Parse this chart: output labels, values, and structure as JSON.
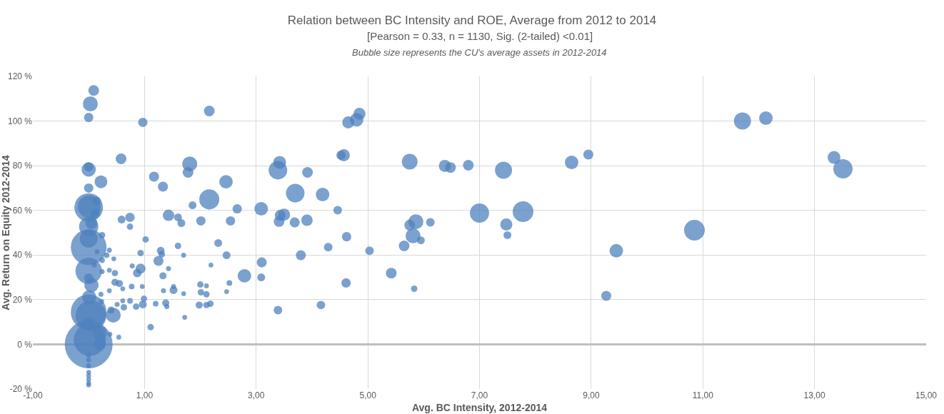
{
  "chart_data": {
    "type": "bubble",
    "title": "Relation between BC Intensity and ROE, Average from 2012 to 2014",
    "subtitle": "[Pearson = 0.33, n = 1130, Sig. (2-tailed) <0.01]",
    "annotations": [
      "Bubble size represents the CU's average assets in 2012-2014"
    ],
    "xlabel": "Avg. BC Intensity, 2012-2014",
    "ylabel": "Avg. Return on Equity 2012-2014",
    "x": [
      11.71,
      12.13,
      13.35,
      13.51,
      10.85,
      9.45,
      9.27,
      8.65,
      8.95,
      4.65,
      4.8,
      4.85,
      4.52,
      4.57,
      5.75,
      6.38,
      6.48,
      6.8,
      7.43,
      7,
      7.78,
      7.48,
      7.5,
      5.75,
      5.86,
      5.81,
      5.95,
      6.12,
      5.65,
      5.42,
      5.83,
      5.03,
      4.62,
      4.61,
      4.29,
      4.16,
      4.46,
      4.19,
      3.7,
      3.92,
      3.42,
      3.39,
      3.91,
      3.69,
      3.5,
      3.43,
      3.41,
      3.8,
      3.09,
      2.66,
      2.54,
      2.46,
      2.32,
      2.47,
      2.79,
      2.52,
      2.47,
      3.1,
      3.09,
      3.39,
      0.09,
      0.03,
      0,
      0.97,
      2.16,
      0.58,
      0,
      0,
      0.22,
      0,
      1.81,
      1.78,
      1.17,
      1.33,
      2.16,
      1.86,
      1.43,
      1.6,
      1.66,
      2.01,
      0.59,
      0.74,
      0.74,
      1.02,
      1.6,
      1.7,
      1.29,
      1.31,
      1.25,
      0.93,
      0.93,
      0.87,
      0.78,
      1.43,
      1.33,
      2.19,
      0.77,
      0.96,
      1.52,
      1.52,
      1.34,
      2,
      2.11,
      2.01,
      2.11,
      1.7,
      0.61,
      0.37,
      0.47,
      0.37,
      0.45,
      0.32,
      0.37,
      0.24,
      0.47,
      0.55,
      0.74,
      0.85,
      0.99,
      0.97,
      1.2,
      1.38,
      1.4,
      1.98,
      2.11,
      2.18,
      1.72,
      1.11,
      0.61,
      0.63,
      0.51,
      0.44,
      0.4,
      0.38,
      0.54,
      0,
      0.02,
      0,
      0.04,
      0,
      0,
      0,
      0.01,
      0,
      0,
      0.05,
      0.14,
      0.01,
      0.05,
      0,
      0.2,
      0.2,
      0.24,
      0.24,
      0.22,
      0.23,
      0.15,
      0.12,
      0.1,
      0,
      0,
      0,
      0,
      0,
      0,
      0,
      0,
      0
    ],
    "values": [
      100,
      101.3,
      83.7,
      78.6,
      51.1,
      41.9,
      21.7,
      81.5,
      85,
      99.4,
      100.6,
      103.2,
      84.7,
      84.7,
      81.8,
      79.9,
      79.2,
      80.2,
      78,
      58.8,
      59.4,
      53.7,
      48.9,
      53.4,
      54.9,
      48.6,
      46.6,
      54.6,
      44.1,
      31.9,
      24.9,
      41.9,
      48.2,
      27.5,
      43.5,
      17.6,
      60.1,
      67.1,
      67.7,
      77,
      81.5,
      78,
      55.6,
      54.6,
      58.1,
      57.8,
      55,
      39.9,
      60.7,
      60.7,
      55.3,
      72.8,
      45.4,
      39.9,
      30.7,
      27.5,
      23.6,
      36.7,
      30,
      15.3,
      113.7,
      107.7,
      101.6,
      99.4,
      104.5,
      83.1,
      78.3,
      79.5,
      72.8,
      70,
      80.8,
      77,
      75.1,
      70.6,
      64.9,
      62.3,
      57.8,
      56.9,
      54.3,
      55.3,
      55.9,
      56.9,
      52.7,
      47,
      44.1,
      39.9,
      41.9,
      40.3,
      37.4,
      40.9,
      33.9,
      31.9,
      35.1,
      33.9,
      30.7,
      35.5,
      25.9,
      25.9,
      25.9,
      24.3,
      24,
      26.8,
      26.2,
      23.3,
      22.4,
      22.7,
      24.9,
      24,
      31.9,
      33.2,
      38.3,
      39.9,
      42.2,
      48.9,
      27.8,
      27.2,
      19.5,
      16.9,
      20.4,
      17.9,
      18.2,
      18.5,
      16.9,
      17.6,
      17.6,
      18.2,
      12.1,
      7.7,
      19.5,
      16.6,
      17.9,
      13.1,
      15.3,
      4.5,
      3.2,
      0,
      2,
      14.4,
      12.8,
      43.5,
      32.9,
      61.3,
      61.7,
      52.7,
      47.3,
      54.3,
      64.2,
      21.1,
      26.5,
      29.7,
      5.1,
      0,
      37.7,
      32.6,
      22.4,
      19.2,
      41.5,
      58.5,
      35.5,
      9.6,
      -4.8,
      -7,
      -9.6,
      -12.5,
      -14,
      -15.7,
      -17.3,
      -18.2
    ],
    "sizes": [
      0.128,
      0.08,
      0.072,
      0.162,
      0.187,
      0.08,
      0.044,
      0.08,
      0.044,
      0.064,
      0.08,
      0.064,
      0.038,
      0.064,
      0.108,
      0.064,
      0.05,
      0.05,
      0.128,
      0.162,
      0.187,
      0.064,
      0.027,
      0.05,
      0.098,
      0.098,
      0.027,
      0.032,
      0.05,
      0.05,
      0.018,
      0.032,
      0.038,
      0.038,
      0.032,
      0.032,
      0.032,
      0.08,
      0.151,
      0.05,
      0.072,
      0.151,
      0.057,
      0.044,
      0.064,
      0.05,
      0.05,
      0.044,
      0.08,
      0.038,
      0.038,
      0.08,
      0.027,
      0.027,
      0.08,
      0.014,
      0.01,
      0.044,
      0.027,
      0.032,
      0.05,
      0.098,
      0.038,
      0.038,
      0.05,
      0.05,
      0.089,
      0.038,
      0.072,
      0.038,
      0.098,
      0.05,
      0.044,
      0.044,
      0.175,
      0.027,
      0.057,
      0.027,
      0.027,
      0.038,
      0.027,
      0.038,
      0.018,
      0.018,
      0.018,
      0.011,
      0.027,
      0.018,
      0.044,
      0.018,
      0.044,
      0.032,
      0.011,
      0.011,
      0.022,
      0.01,
      0.014,
      0.01,
      0.011,
      0.027,
      0.011,
      0.018,
      0.01,
      0.018,
      0.018,
      0.01,
      0.01,
      0.01,
      0.018,
      0.01,
      0.01,
      0.014,
      0.011,
      0.018,
      0.022,
      0.022,
      0.014,
      0.018,
      0.018,
      0.027,
      0.014,
      0.022,
      0.011,
      0.022,
      0.018,
      0.018,
      0.01,
      0.018,
      0.01,
      0.018,
      0.011,
      0.098,
      0.022,
      0.01,
      0.01,
      1,
      0.451,
      0.557,
      0.412,
      0.557,
      0.305,
      0.356,
      0.228,
      0.162,
      0.139,
      0.064,
      0.032,
      0.089,
      0.089,
      0.038,
      0.089,
      0.064,
      0.014,
      0.011,
      0.011,
      0.011,
      0.01,
      0.038,
      0.01,
      0.064,
      0.011,
      0.01,
      0.01,
      0.01,
      0.01,
      0.01,
      0.01,
      0.01
    ],
    "color": "#4f81bd",
    "xlim": [
      -1,
      15
    ],
    "xticks": [
      {
        "value": -1,
        "label": "-1,00"
      },
      {
        "value": 1,
        "label": "1,00"
      },
      {
        "value": 3,
        "label": "3,00"
      },
      {
        "value": 5,
        "label": "5,00"
      },
      {
        "value": 7,
        "label": "7,00"
      },
      {
        "value": 9,
        "label": "9,00"
      },
      {
        "value": 11,
        "label": "11,00"
      },
      {
        "value": 13,
        "label": "13,00"
      },
      {
        "value": 15,
        "label": "15,00"
      }
    ],
    "ylim": [
      -20,
      120
    ],
    "yticks": [
      {
        "value": -20,
        "label": "-20 %"
      },
      {
        "value": 0,
        "label": "0 %"
      },
      {
        "value": 20,
        "label": "20 %"
      },
      {
        "value": 40,
        "label": "40 %"
      },
      {
        "value": 60,
        "label": "60 %"
      },
      {
        "value": 80,
        "label": "80 %"
      },
      {
        "value": 100,
        "label": "100 %"
      },
      {
        "value": 120,
        "label": "120 %"
      }
    ],
    "grid": true
  }
}
